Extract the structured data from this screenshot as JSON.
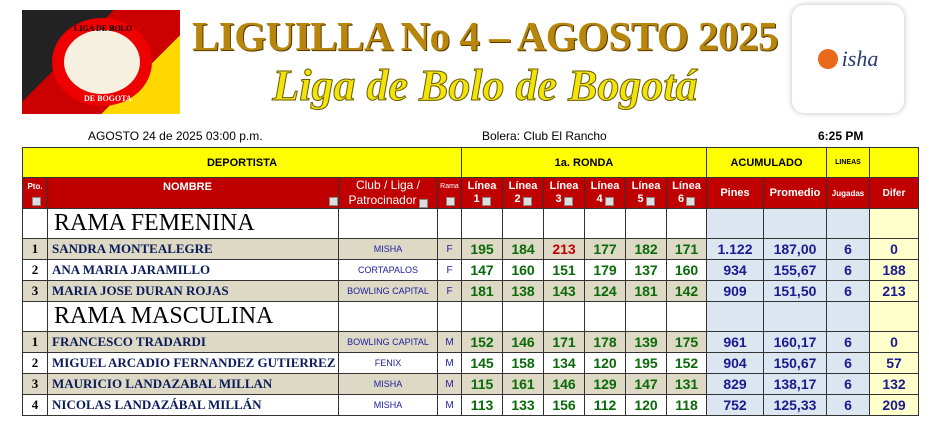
{
  "header": {
    "title": "LIGUILLA No 4 – AGOSTO 2025",
    "subtitle": "Liga de Bolo de Bogotá",
    "logo_left_text": [
      "LIGA DE BOLO",
      "DE BOGOTA"
    ],
    "logo_right_text": "isha"
  },
  "info": {
    "date": "AGOSTO 24  de  2025   03:00 p.m.",
    "venue": "Bolera: Club El Rancho",
    "time": "6:25 PM"
  },
  "table": {
    "groups": {
      "deportista": "DEPORTISTA",
      "ronda": "1a. RONDA",
      "acumulado": "ACUMULADO",
      "lineas": "LINEAS",
      "difer_group": ""
    },
    "columns": {
      "pto": "Pto.",
      "nombre": "NOMBRE",
      "club1": "Club / Liga /",
      "club2": "Patrocinador",
      "rama": "Rama",
      "linea": "Línea",
      "l1": "1",
      "l2": "2",
      "l3": "3",
      "l4": "4",
      "l5": "5",
      "l6": "6",
      "pines": "Pines",
      "promedio": "Promedio",
      "jugadas": "Jugadas",
      "difer": "Difer"
    },
    "sections": [
      {
        "label": "RAMA FEMENINA",
        "rows": [
          {
            "pto": "1",
            "nombre": "SANDRA MONTEALEGRE",
            "club": "MISHA",
            "rama": "F",
            "lineas": [
              "195",
              "184",
              "213",
              "177",
              "182",
              "171"
            ],
            "highlight": [
              2
            ],
            "pines": "1.122",
            "promedio": "187,00",
            "jugadas": "6",
            "difer": "0"
          },
          {
            "pto": "2",
            "nombre": "ANA MARIA JARAMILLO",
            "club": "CORTAPALOS",
            "rama": "F",
            "lineas": [
              "147",
              "160",
              "151",
              "179",
              "137",
              "160"
            ],
            "highlight": [],
            "pines": "934",
            "promedio": "155,67",
            "jugadas": "6",
            "difer": "188"
          },
          {
            "pto": "3",
            "nombre": "MARIA JOSE DURAN ROJAS",
            "club": "BOWLING CAPITAL",
            "rama": "F",
            "lineas": [
              "181",
              "138",
              "143",
              "124",
              "181",
              "142"
            ],
            "highlight": [],
            "pines": "909",
            "promedio": "151,50",
            "jugadas": "6",
            "difer": "213"
          }
        ]
      },
      {
        "label": "RAMA MASCULINA",
        "rows": [
          {
            "pto": "1",
            "nombre": "FRANCESCO TRADARDI",
            "club": "BOWLING CAPITAL",
            "rama": "M",
            "lineas": [
              "152",
              "146",
              "171",
              "178",
              "139",
              "175"
            ],
            "highlight": [],
            "pines": "961",
            "promedio": "160,17",
            "jugadas": "6",
            "difer": "0"
          },
          {
            "pto": "2",
            "nombre": "MIGUEL ARCADIO FERNANDEZ GUTIERREZ",
            "club": "FENIX",
            "rama": "M",
            "lineas": [
              "145",
              "158",
              "134",
              "120",
              "195",
              "152"
            ],
            "highlight": [],
            "pines": "904",
            "promedio": "150,67",
            "jugadas": "6",
            "difer": "57"
          },
          {
            "pto": "3",
            "nombre": "MAURICIO LANDAZABAL MILLAN",
            "club": "MISHA",
            "rama": "M",
            "lineas": [
              "115",
              "161",
              "146",
              "129",
              "147",
              "131"
            ],
            "highlight": [],
            "pines": "829",
            "promedio": "138,17",
            "jugadas": "6",
            "difer": "132"
          },
          {
            "pto": "4",
            "nombre": "NICOLAS LANDAZÁBAL MILLÁN",
            "club": "MISHA",
            "rama": "M",
            "lineas": [
              "113",
              "133",
              "156",
              "112",
              "120",
              "118"
            ],
            "highlight": [],
            "pines": "752",
            "promedio": "125,33",
            "jugadas": "6",
            "difer": "209"
          }
        ]
      }
    ]
  },
  "colors": {
    "header_yellow": "#ffff00",
    "header_red": "#c00000",
    "score_green": "#0a6a0a",
    "score_high": "#c00000",
    "row_tan": "#ddd9c4",
    "acumulado_bg": "#dce6f1",
    "difer_bg": "#ffffcc"
  }
}
